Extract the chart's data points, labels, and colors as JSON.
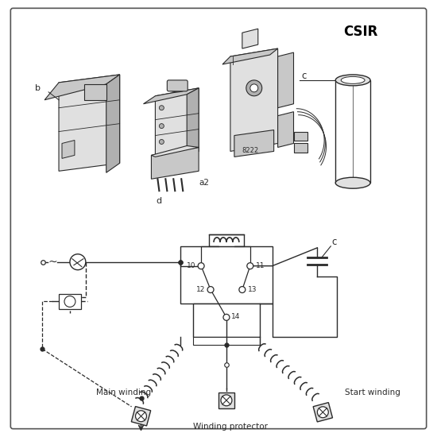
{
  "title": "CSIR",
  "bg_color": "#ffffff",
  "lc": "#2a2a2a",
  "gray1": "#e0e0e0",
  "gray2": "#c8c8c8",
  "gray3": "#b0b0b0",
  "label_b": "b",
  "label_a2": "a2",
  "label_c_top": "c",
  "label_c_bot": "c",
  "label_d": "d",
  "label_8222": "8222",
  "label_10": "10",
  "label_11": "11",
  "label_12": "12",
  "label_13": "13",
  "label_14": "14",
  "label_main": "Main winding",
  "label_start": "Start winding",
  "label_protector": "Winding protector",
  "fig_w": 5.5,
  "fig_h": 5.5,
  "dpi": 100
}
